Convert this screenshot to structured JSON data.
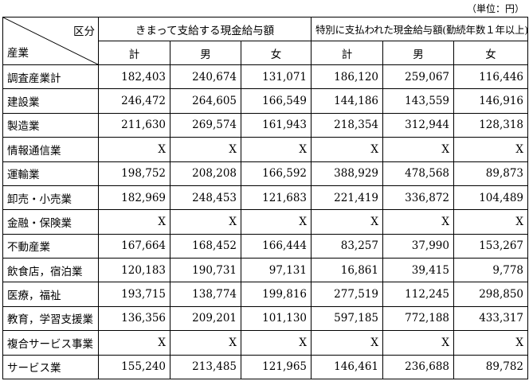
{
  "unit": "（単位：円）",
  "header": {
    "corner_top": "区分",
    "corner_bottom": "産業",
    "group1": "きまって支給する現金給与額",
    "group2": "特別に支払われた現金給与額(勤続年数１年以上)",
    "subcols": [
      "計",
      "男",
      "女",
      "計",
      "男",
      "女"
    ]
  },
  "rows": [
    {
      "label": "調査産業計",
      "values": [
        "182,403",
        "240,674",
        "131,071",
        "186,120",
        "259,067",
        "116,446"
      ]
    },
    {
      "label": "建設業",
      "values": [
        "246,472",
        "264,605",
        "166,549",
        "144,186",
        "143,559",
        "146,916"
      ]
    },
    {
      "label": "製造業",
      "values": [
        "211,630",
        "269,574",
        "161,943",
        "218,354",
        "312,944",
        "128,318"
      ]
    },
    {
      "label": "情報通信業",
      "values": [
        "X",
        "X",
        "X",
        "X",
        "X",
        "X"
      ]
    },
    {
      "label": "運輸業",
      "values": [
        "198,752",
        "208,208",
        "166,592",
        "388,929",
        "478,568",
        "89,873"
      ]
    },
    {
      "label": "卸売・小売業",
      "values": [
        "182,969",
        "248,453",
        "121,683",
        "221,419",
        "336,872",
        "104,489"
      ]
    },
    {
      "label": "金融・保険業",
      "values": [
        "X",
        "X",
        "X",
        "X",
        "X",
        "X"
      ]
    },
    {
      "label": "不動産業",
      "values": [
        "167,664",
        "168,452",
        "166,444",
        "83,257",
        "37,990",
        "153,267"
      ]
    },
    {
      "label": "飲食店，宿泊業",
      "values": [
        "120,183",
        "190,731",
        "97,131",
        "16,861",
        "39,415",
        "9,778"
      ]
    },
    {
      "label": "医療，福祉",
      "values": [
        "193,715",
        "138,774",
        "199,816",
        "277,519",
        "112,245",
        "298,850"
      ]
    },
    {
      "label": "教育，学習支援業",
      "values": [
        "136,356",
        "209,201",
        "101,130",
        "597,185",
        "772,188",
        "433,317"
      ]
    },
    {
      "label": "複合サービス事業",
      "values": [
        "X",
        "X",
        "X",
        "X",
        "X",
        "X"
      ]
    },
    {
      "label": "サービス業",
      "values": [
        "155,240",
        "213,485",
        "121,965",
        "146,461",
        "236,688",
        "89,782"
      ]
    }
  ]
}
